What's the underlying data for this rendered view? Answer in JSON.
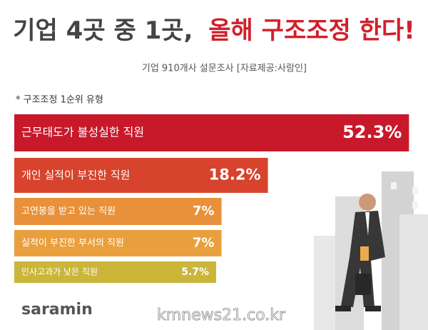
{
  "chart_data": {
    "type": "bar",
    "title": [
      "기업 4곳 중 1곳,",
      "올해 구조조정 한다!"
    ],
    "subtitle": "기업 910개사 설문조사 [자료제공:사람인]",
    "note": "* 구조조정 1순위 유형",
    "categories": [
      "근무태도가 불성실한 직원",
      "개인 실적이 부진한 직원",
      "고연봉을 받고 있는 직원",
      "실적이 부진한 부서의 직원",
      "인사고과가 낮은 직원"
    ],
    "values": [
      52.3,
      18.2,
      7,
      7,
      5.7
    ],
    "value_labels": [
      "52.3%",
      "18.2%",
      "7%",
      "7%",
      "5.7%"
    ],
    "colors": [
      "#c8192b",
      "#d7432c",
      "#e8913a",
      "#e9a03c",
      "#cbb63a"
    ],
    "logo": "saramin",
    "watermark": "kmnews21.co.kr"
  }
}
